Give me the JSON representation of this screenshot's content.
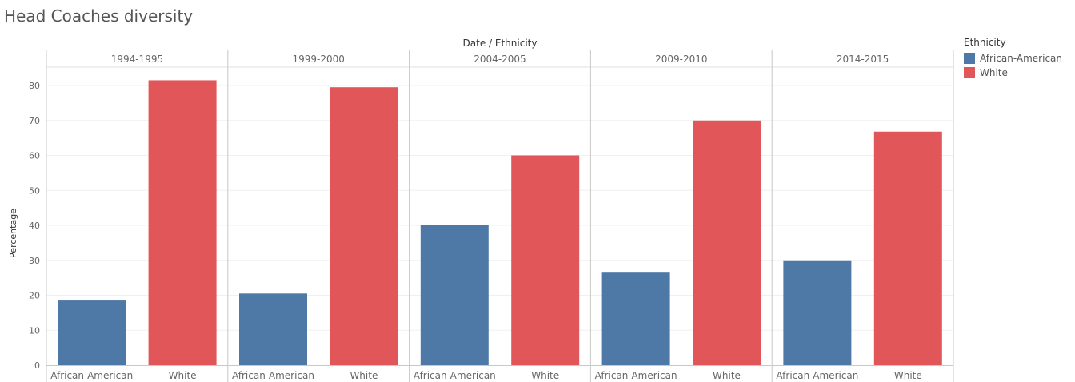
{
  "title": "Head Coaches diversity",
  "colors": {
    "African-American": "#4e79a7",
    "White": "#e15759"
  },
  "chart_data": {
    "type": "bar",
    "title": "Head Coaches diversity",
    "header_label": "Date  /  Ethnicity",
    "ylabel": "Percentage",
    "ylim": [
      0,
      85
    ],
    "yticks": [
      0,
      10,
      20,
      30,
      40,
      50,
      60,
      70,
      80
    ],
    "grid": true,
    "legend_position": "right",
    "legend_title": "Ethnicity",
    "categories": [
      "African-American",
      "White"
    ],
    "groups": [
      {
        "date": "1994-1995",
        "values": [
          18.5,
          81.5
        ]
      },
      {
        "date": "1999-2000",
        "values": [
          20.5,
          79.5
        ]
      },
      {
        "date": "2004-2005",
        "values": [
          40,
          60
        ]
      },
      {
        "date": "2009-2010",
        "values": [
          26.7,
          70
        ]
      },
      {
        "date": "2014-2015",
        "values": [
          30,
          66.8
        ]
      }
    ]
  }
}
